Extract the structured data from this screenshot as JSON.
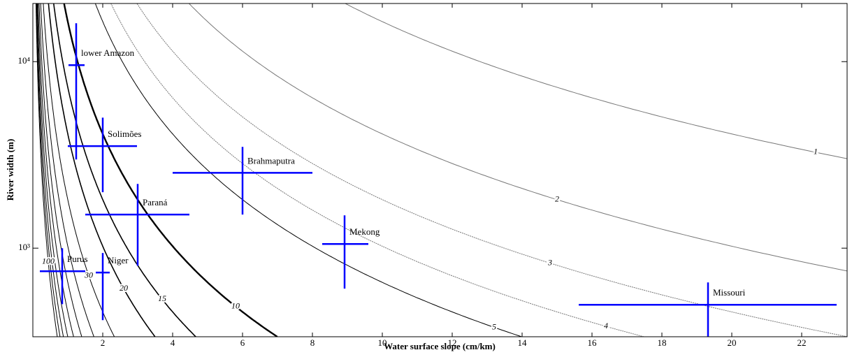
{
  "chart_data": {
    "type": "errorbar",
    "x_label": "Water surface slope (cm/km)",
    "y_label": "River width (m)",
    "xlim": [
      0,
      23.3
    ],
    "ylim": [
      335,
      20500
    ],
    "log_y": true,
    "xticks": [
      2,
      4,
      6,
      8,
      10,
      12,
      14,
      16,
      18,
      20,
      22
    ],
    "yticks": [
      {
        "value": 1000,
        "label": "10³"
      },
      {
        "value": 10000,
        "label": "10⁴"
      }
    ],
    "color": "#0000ff",
    "points": [
      {
        "name": "lower Amazon",
        "x": 1.24,
        "x_low": 1.02,
        "x_high": 1.48,
        "y": 9580,
        "y_low": 2990,
        "y_high": 16070
      },
      {
        "name": "Solimões",
        "x": 2.0,
        "x_low": 1.0,
        "x_high": 2.98,
        "y": 3525,
        "y_low": 1995,
        "y_high": 5010
      },
      {
        "name": "Brahmaputra",
        "x": 6.0,
        "x_low": 4.0,
        "x_high": 8.0,
        "y": 2535,
        "y_low": 1514,
        "y_high": 3490
      },
      {
        "name": "Paraná",
        "x": 3.0,
        "x_low": 1.5,
        "x_high": 4.48,
        "y": 1514,
        "y_low": 806,
        "y_high": 2210
      },
      {
        "name": "Mekong",
        "x": 8.92,
        "x_low": 8.28,
        "x_high": 9.6,
        "y": 1053,
        "y_low": 607,
        "y_high": 1500
      },
      {
        "name": "Purus",
        "x": 0.84,
        "x_low": 0.2,
        "x_high": 1.5,
        "y": 752,
        "y_low": 501,
        "y_high": 1000
      },
      {
        "name": "Niger",
        "x": 2.0,
        "x_low": 1.8,
        "x_high": 2.2,
        "y": 740,
        "y_low": 411,
        "y_high": 942
      },
      {
        "name": "Missouri",
        "x": 19.32,
        "x_low": 15.62,
        "x_high": 23.0,
        "y": 497,
        "y_low": 335,
        "y_high": 655
      }
    ],
    "contours": {
      "levels": [
        1,
        2,
        3,
        4,
        5,
        10,
        15,
        20,
        30,
        40,
        50,
        60,
        70,
        80,
        90,
        100
      ]
    }
  }
}
